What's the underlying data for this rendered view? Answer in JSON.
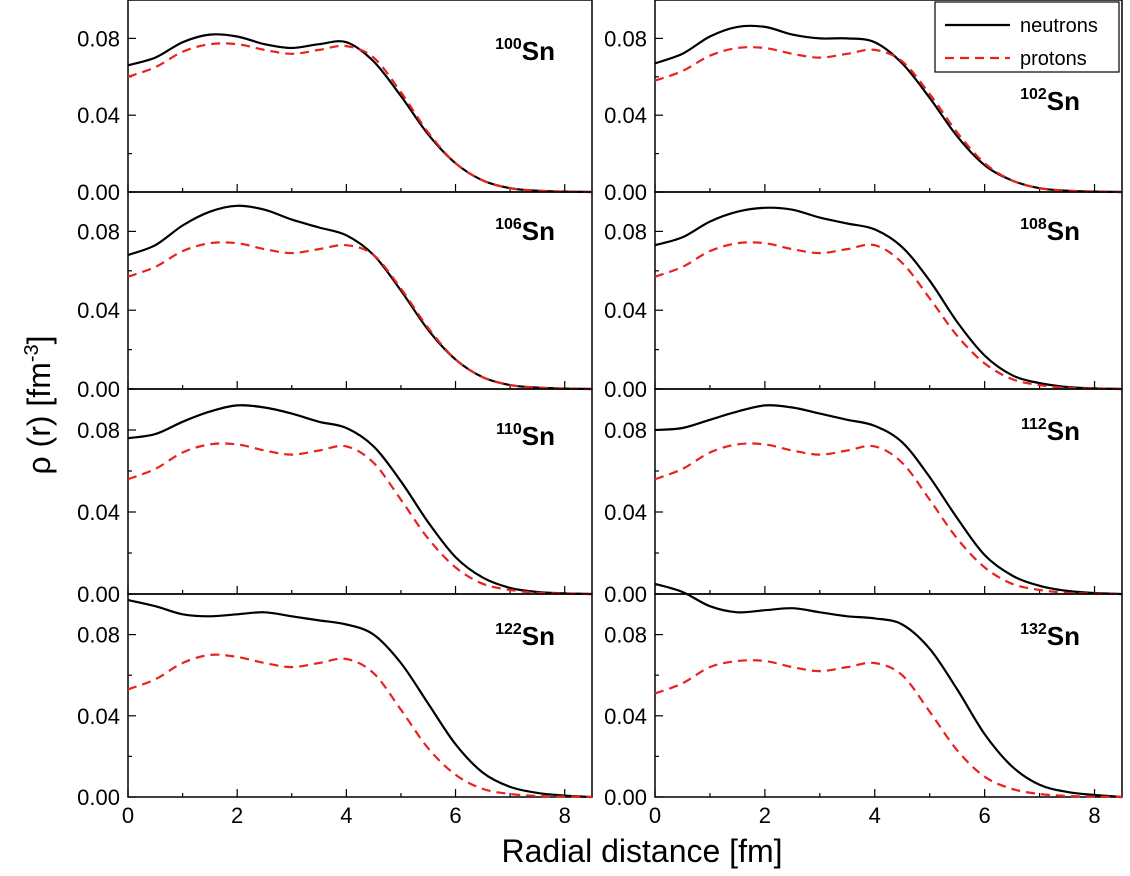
{
  "chart_data": {
    "type": "line",
    "xlabel": "Radial distance [fm]",
    "ylabel_main": "ρ (r)   [fm",
    "ylabel_exp": "-3",
    "ylabel_close": "]",
    "xlim": [
      0,
      8.5
    ],
    "ylim": [
      0,
      0.1
    ],
    "xticks": [
      0,
      2,
      4,
      6,
      8
    ],
    "xtick_labels": [
      "0",
      "2",
      "4",
      "6",
      "8"
    ],
    "yticks": [
      0,
      0.04,
      0.08
    ],
    "ytick_labels": [
      "0.00",
      "0.04",
      "0.08"
    ],
    "grid": false,
    "legend": {
      "placement": "top-right of upper-right panel",
      "entries": [
        {
          "name": "neutrons",
          "color": "#000000",
          "style": "solid"
        },
        {
          "name": "protons",
          "color": "#e8231f",
          "style": "dashed"
        }
      ]
    },
    "x": [
      0,
      0.5,
      1,
      1.5,
      2,
      2.5,
      3,
      3.5,
      4,
      4.5,
      5,
      5.5,
      6,
      6.5,
      7,
      7.5,
      8,
      8.5
    ],
    "panels": [
      {
        "mass": "100",
        "element": "Sn",
        "series": [
          {
            "name": "neutrons",
            "values": [
              0.066,
              0.07,
              0.078,
              0.082,
              0.081,
              0.077,
              0.075,
              0.077,
              0.078,
              0.068,
              0.05,
              0.03,
              0.015,
              0.006,
              0.002,
              0.0007,
              0.0002,
              0.0
            ]
          },
          {
            "name": "protons",
            "values": [
              0.06,
              0.065,
              0.073,
              0.077,
              0.077,
              0.074,
              0.072,
              0.074,
              0.076,
              0.07,
              0.052,
              0.031,
              0.015,
              0.006,
              0.002,
              0.0007,
              0.0002,
              0.0
            ]
          }
        ]
      },
      {
        "mass": "102",
        "element": "Sn",
        "series": [
          {
            "name": "neutrons",
            "values": [
              0.067,
              0.072,
              0.081,
              0.086,
              0.086,
              0.082,
              0.08,
              0.08,
              0.078,
              0.067,
              0.049,
              0.029,
              0.014,
              0.006,
              0.002,
              0.0007,
              0.0002,
              0.0
            ]
          },
          {
            "name": "protons",
            "values": [
              0.058,
              0.063,
              0.071,
              0.075,
              0.075,
              0.072,
              0.07,
              0.072,
              0.074,
              0.068,
              0.051,
              0.031,
              0.015,
              0.006,
              0.002,
              0.0007,
              0.0002,
              0.0
            ]
          }
        ]
      },
      {
        "mass": "106",
        "element": "Sn",
        "series": [
          {
            "name": "neutrons",
            "values": [
              0.068,
              0.073,
              0.083,
              0.09,
              0.093,
              0.091,
              0.086,
              0.082,
              0.078,
              0.068,
              0.05,
              0.03,
              0.015,
              0.006,
              0.002,
              0.0007,
              0.0002,
              0.0
            ]
          },
          {
            "name": "protons",
            "values": [
              0.057,
              0.062,
              0.07,
              0.074,
              0.074,
              0.071,
              0.069,
              0.071,
              0.073,
              0.068,
              0.051,
              0.031,
              0.015,
              0.006,
              0.002,
              0.0007,
              0.0002,
              0.0
            ]
          }
        ]
      },
      {
        "mass": "108",
        "element": "Sn",
        "series": [
          {
            "name": "neutrons",
            "values": [
              0.073,
              0.077,
              0.085,
              0.09,
              0.092,
              0.091,
              0.087,
              0.084,
              0.081,
              0.072,
              0.055,
              0.034,
              0.017,
              0.007,
              0.003,
              0.001,
              0.0003,
              0.0
            ]
          },
          {
            "name": "protons",
            "values": [
              0.057,
              0.062,
              0.07,
              0.074,
              0.074,
              0.071,
              0.069,
              0.071,
              0.073,
              0.064,
              0.046,
              0.027,
              0.013,
              0.005,
              0.002,
              0.0006,
              0.0002,
              0.0
            ]
          }
        ]
      },
      {
        "mass": "110",
        "element": "Sn",
        "series": [
          {
            "name": "neutrons",
            "values": [
              0.076,
              0.078,
              0.084,
              0.089,
              0.092,
              0.091,
              0.088,
              0.084,
              0.081,
              0.072,
              0.055,
              0.035,
              0.018,
              0.008,
              0.003,
              0.001,
              0.0003,
              0.0
            ]
          },
          {
            "name": "protons",
            "values": [
              0.056,
              0.061,
              0.069,
              0.073,
              0.073,
              0.07,
              0.068,
              0.07,
              0.072,
              0.064,
              0.046,
              0.027,
              0.013,
              0.005,
              0.002,
              0.0006,
              0.0002,
              0.0
            ]
          }
        ]
      },
      {
        "mass": "112",
        "element": "Sn",
        "series": [
          {
            "name": "neutrons",
            "values": [
              0.08,
              0.081,
              0.085,
              0.089,
              0.092,
              0.091,
              0.088,
              0.085,
              0.082,
              0.074,
              0.057,
              0.037,
              0.019,
              0.009,
              0.004,
              0.0015,
              0.0005,
              0.0
            ]
          },
          {
            "name": "protons",
            "values": [
              0.056,
              0.061,
              0.069,
              0.073,
              0.073,
              0.07,
              0.068,
              0.07,
              0.072,
              0.064,
              0.046,
              0.027,
              0.013,
              0.005,
              0.002,
              0.0006,
              0.0002,
              0.0
            ]
          }
        ]
      },
      {
        "mass": "122",
        "element": "Sn",
        "series": [
          {
            "name": "neutrons",
            "values": [
              0.097,
              0.094,
              0.09,
              0.089,
              0.09,
              0.091,
              0.089,
              0.087,
              0.085,
              0.08,
              0.066,
              0.046,
              0.026,
              0.012,
              0.005,
              0.002,
              0.0007,
              0.0
            ]
          },
          {
            "name": "protons",
            "values": [
              0.053,
              0.058,
              0.066,
              0.07,
              0.069,
              0.066,
              0.064,
              0.066,
              0.068,
              0.061,
              0.043,
              0.024,
              0.011,
              0.004,
              0.0015,
              0.0005,
              0.0002,
              0.0
            ]
          }
        ]
      },
      {
        "mass": "132",
        "element": "Sn",
        "series": [
          {
            "name": "neutrons",
            "values": [
              0.105,
              0.101,
              0.094,
              0.091,
              0.092,
              0.093,
              0.091,
              0.089,
              0.088,
              0.085,
              0.073,
              0.053,
              0.031,
              0.015,
              0.006,
              0.0025,
              0.001,
              0.0
            ]
          },
          {
            "name": "protons",
            "values": [
              0.051,
              0.056,
              0.064,
              0.067,
              0.067,
              0.064,
              0.062,
              0.064,
              0.066,
              0.06,
              0.042,
              0.023,
              0.01,
              0.004,
              0.0015,
              0.0005,
              0.0002,
              0.0
            ]
          }
        ]
      }
    ]
  }
}
